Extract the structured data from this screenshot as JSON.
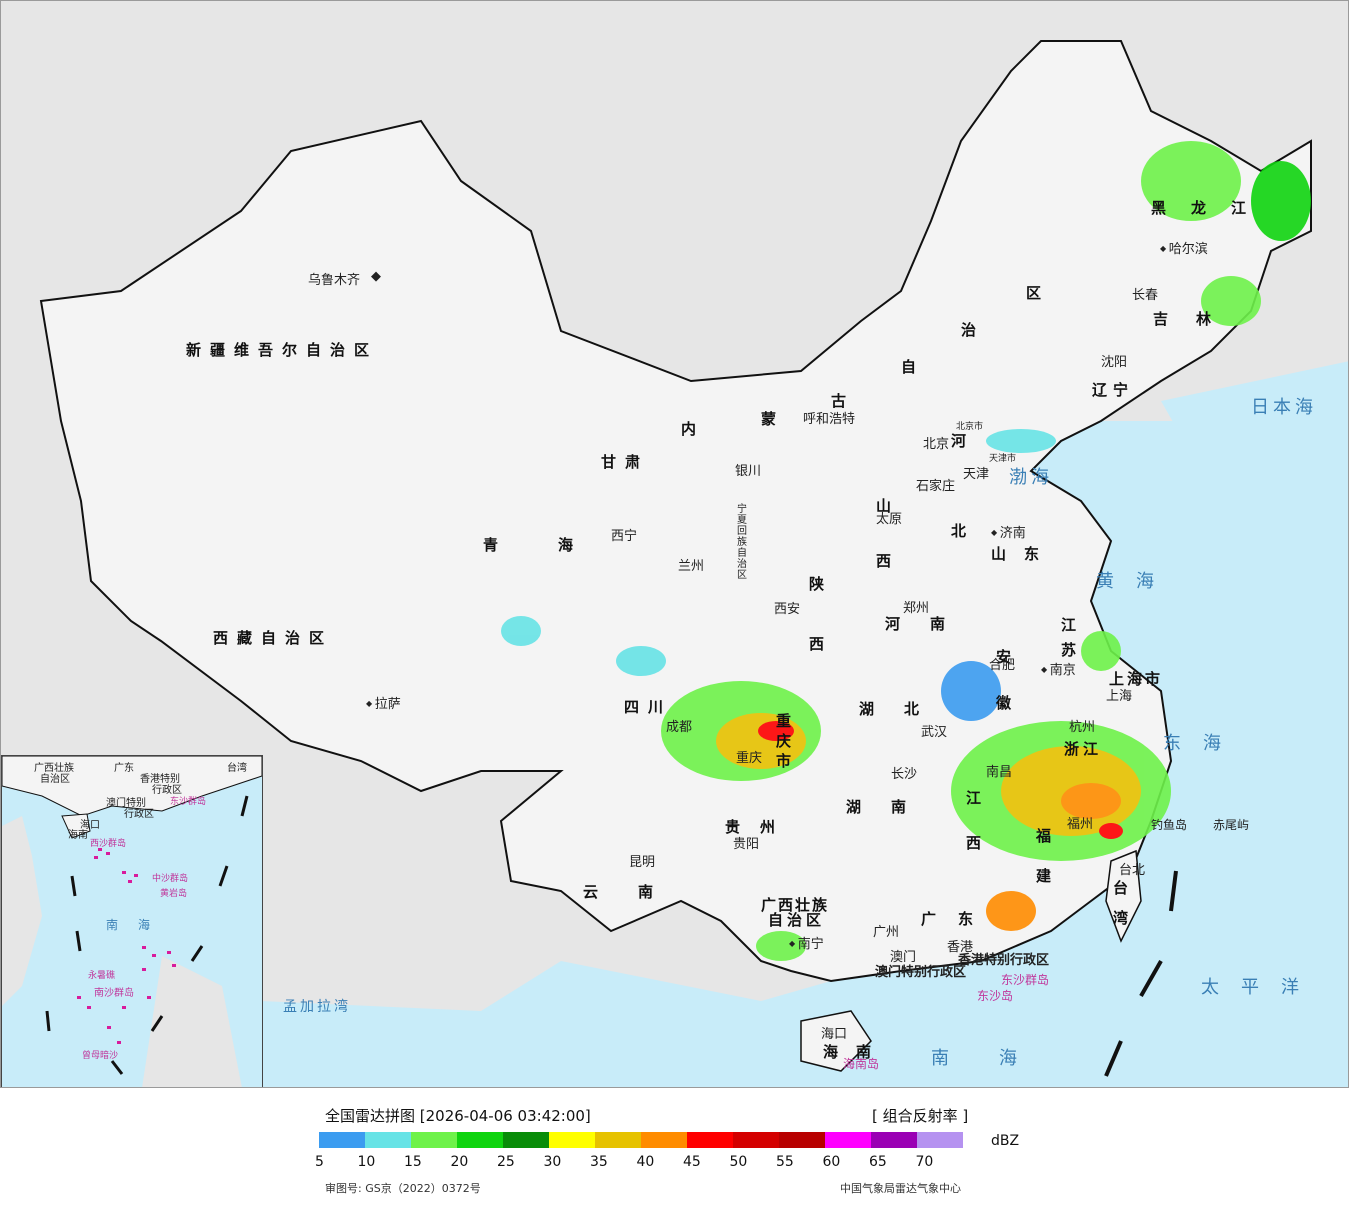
{
  "labels": {
    "provinces": [
      "新疆维吾尔自治区",
      "西藏自治区",
      "青海",
      "甘肃",
      "四川",
      "云南",
      "贵州",
      "重庆市",
      "陕西",
      "山西",
      "河南",
      "湖北",
      "湖南",
      "广西壮族",
      "自治区",
      "广东",
      "河北",
      "山东",
      "江苏",
      "安徽",
      "浙江",
      "江西",
      "福建",
      "台湾",
      "辽宁",
      "吉林",
      "黑龙江",
      "上海市",
      "海南",
      "内",
      "蒙",
      "古",
      "自",
      "治",
      "区",
      "宁夏回族自治区"
    ],
    "cities": [
      "乌鲁木齐",
      "拉萨",
      "西宁",
      "兰州",
      "银川",
      "呼和浩特",
      "北京",
      "天津",
      "石家庄",
      "太原",
      "济南",
      "郑州",
      "西安",
      "合肥",
      "南京",
      "上海",
      "杭州",
      "武汉",
      "长沙",
      "南昌",
      "福州",
      "台北",
      "重庆",
      "成都",
      "贵阳",
      "昆明",
      "南宁",
      "广州",
      "香港",
      "澳门",
      "海口",
      "沈阳",
      "长春",
      "哈尔滨"
    ],
    "seas": [
      "日本海",
      "渤海",
      "黄海",
      "东海",
      "太平洋",
      "南海",
      "孟加拉湾"
    ],
    "islands": [
      "钓鱼岛",
      "赤尾屿",
      "东沙群岛",
      "东沙岛",
      "海南岛",
      "香港特别行政区",
      "澳门特别行政区",
      "北京市",
      "天津市"
    ]
  },
  "inset": {
    "labels": [
      "广西壮族",
      "自治区",
      "广东",
      "香港特别",
      "行政区",
      "澳门特别",
      "行政区",
      "东沙群岛",
      "海口",
      "海南",
      "西沙群岛",
      "中沙群岛",
      "黄岩岛",
      "南海",
      "永暑礁",
      "南沙群岛",
      "曾母暗沙",
      "台湾"
    ]
  },
  "legend": {
    "title": "全国雷达拼图 [2026-04-06 03:42:00]",
    "product": "[ 组合反射率 ]",
    "unit": "dBZ",
    "ticks": [
      "5",
      "10",
      "15",
      "20",
      "25",
      "30",
      "35",
      "40",
      "45",
      "50",
      "55",
      "60",
      "65",
      "70"
    ],
    "colors": [
      "#3b9cf0",
      "#67e3e6",
      "#6ef24a",
      "#0fd40f",
      "#088c08",
      "#ffff00",
      "#e6c200",
      "#ff8c00",
      "#ff0000",
      "#d40000",
      "#b80000",
      "#ff00ff",
      "#9a00b4",
      "#b592f0"
    ],
    "review_no": "审图号: GS京（2022）0372号",
    "source": "中国气象局雷达气象中心"
  }
}
